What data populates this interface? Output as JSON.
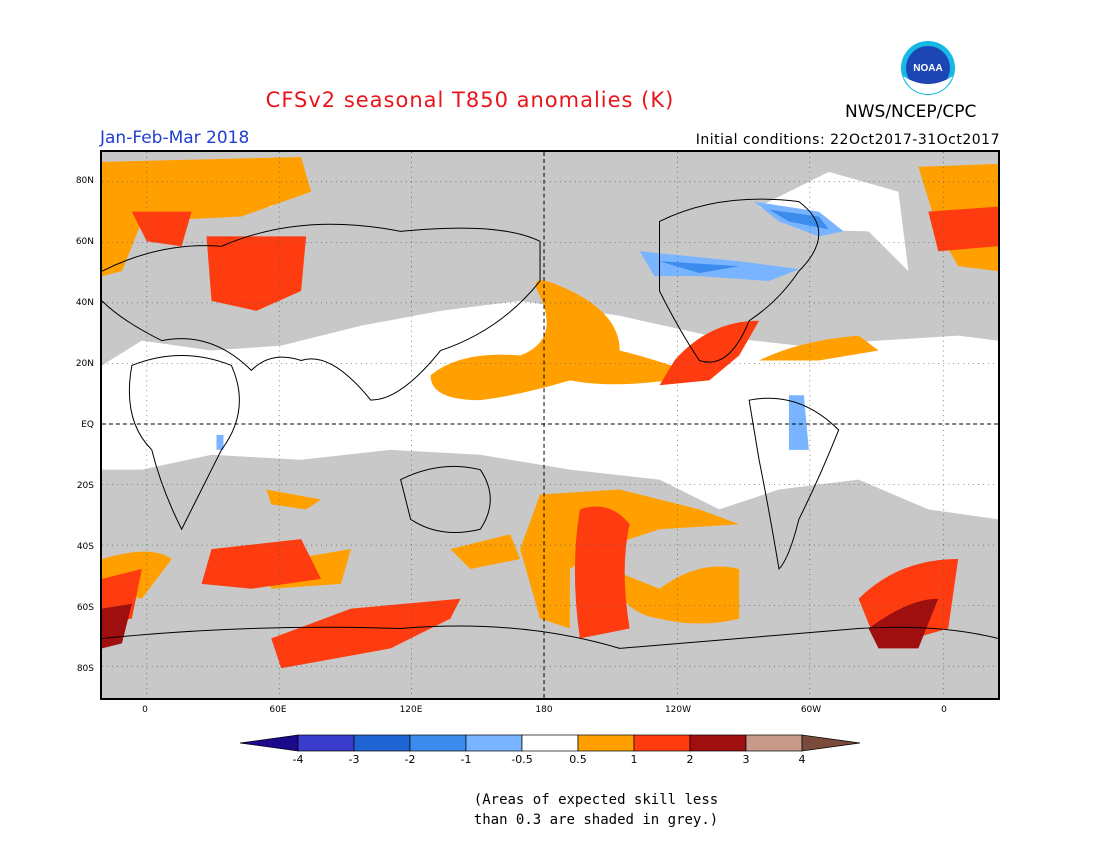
{
  "header": {
    "title": "CFSv2 seasonal T850 anomalies (K)",
    "agency": "NWS/NCEP/CPC",
    "period": "Jan-Feb-Mar 2018",
    "initial_conditions": "Initial conditions: 22Oct2017-31Oct2017"
  },
  "logo": {
    "text": "NOAA",
    "name": "noaa-logo"
  },
  "map": {
    "lat_labels": [
      "80N",
      "60N",
      "40N",
      "20N",
      "EQ",
      "20S",
      "40S",
      "60S",
      "80S"
    ],
    "lon_labels": [
      "0",
      "60E",
      "120E",
      "180",
      "120W",
      "60W",
      "0"
    ],
    "colors": {
      "grey_low_skill": "#c8c8c8",
      "neutral": "#ffffff",
      "pos_0_5_1": "#ffa000",
      "pos_1_2": "#ff3c10",
      "pos_2_3": "#a00f0f",
      "neg_0_5_1": "#78b4ff",
      "neg_1_2": "#3c8cee"
    }
  },
  "colorbar": {
    "labels": [
      "-4",
      "-3",
      "-2",
      "-1",
      "-0.5",
      "0.5",
      "1",
      "2",
      "3",
      "4"
    ],
    "colors": [
      "#1c0a8c",
      "#3a3ccc",
      "#1e64d2",
      "#3c8cee",
      "#78b4ff",
      "#ffffff",
      "#ffa000",
      "#ff3c10",
      "#a00f0f",
      "#c89a8a",
      "#7a4a3a"
    ]
  },
  "notes": {
    "line1": "(Areas of expected skill less",
    "line2": "than 0.3 are shaded in grey.)"
  }
}
